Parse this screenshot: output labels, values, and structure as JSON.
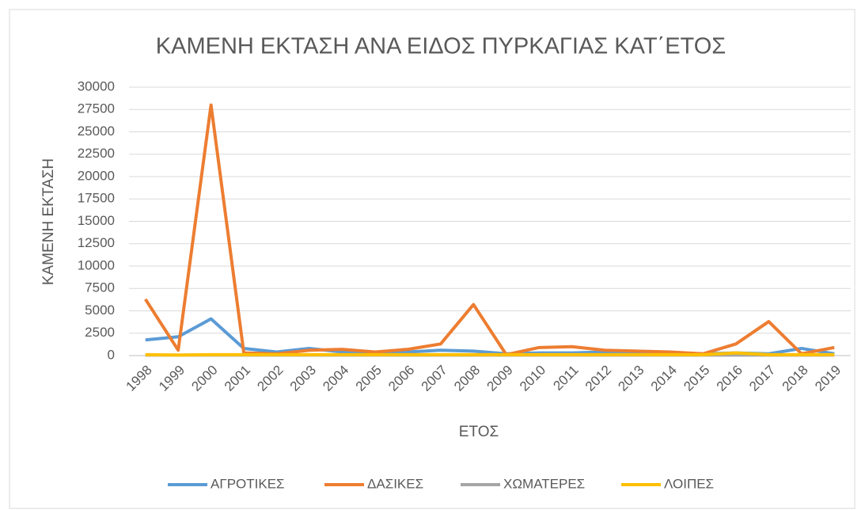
{
  "chart_data": {
    "type": "line",
    "title": "ΚΑΜΕΝΗ ΕΚΤΑΣΗ ΑΝΑ ΕΙΔΟΣ ΠΥΡΚΑΓΙΑΣ ΚΑΤ΄ΕΤΟΣ",
    "x_label": "ΕΤΟΣ",
    "y_label": "ΚΑΜΕΝΗ ΕΚΤΑΣΗ",
    "categories": [
      "1998",
      "1999",
      "2000",
      "2001",
      "2002",
      "2003",
      "2004",
      "2005",
      "2006",
      "2007",
      "2008",
      "2009",
      "2010",
      "2011",
      "2012",
      "2013",
      "2014",
      "2015",
      "2016",
      "2017",
      "2018",
      "2019"
    ],
    "series": [
      {
        "name": "ΑΓΡΟΤΙΚΕΣ",
        "color": "#5b9bd5",
        "values": [
          1750,
          2100,
          4100,
          800,
          400,
          800,
          400,
          300,
          400,
          600,
          500,
          200,
          300,
          300,
          400,
          400,
          300,
          200,
          300,
          200,
          800,
          200
        ]
      },
      {
        "name": "ΔΑΣΙΚΕΣ",
        "color": "#ed7d31",
        "values": [
          6300,
          600,
          28000,
          300,
          200,
          600,
          700,
          400,
          700,
          1300,
          5700,
          100,
          900,
          1000,
          600,
          500,
          400,
          200,
          1300,
          3800,
          200,
          900
        ]
      },
      {
        "name": "ΧΩΜΑΤΕΡΕΣ",
        "color": "#a5a5a5",
        "values": [
          50,
          50,
          50,
          50,
          50,
          50,
          50,
          50,
          50,
          50,
          50,
          50,
          50,
          50,
          50,
          50,
          50,
          50,
          50,
          50,
          50,
          50
        ]
      },
      {
        "name": "ΛΟΙΠΕΣ",
        "color": "#ffc000",
        "values": [
          100,
          50,
          100,
          100,
          100,
          100,
          100,
          100,
          100,
          100,
          100,
          100,
          100,
          100,
          100,
          100,
          100,
          100,
          300,
          100,
          100,
          100
        ]
      }
    ],
    "ylim": [
      0,
      30000
    ],
    "yticks": [
      0,
      2500,
      5000,
      7500,
      10000,
      12500,
      15000,
      17500,
      20000,
      22500,
      25000,
      27500,
      30000
    ],
    "grid": true,
    "legend": "bottom"
  }
}
